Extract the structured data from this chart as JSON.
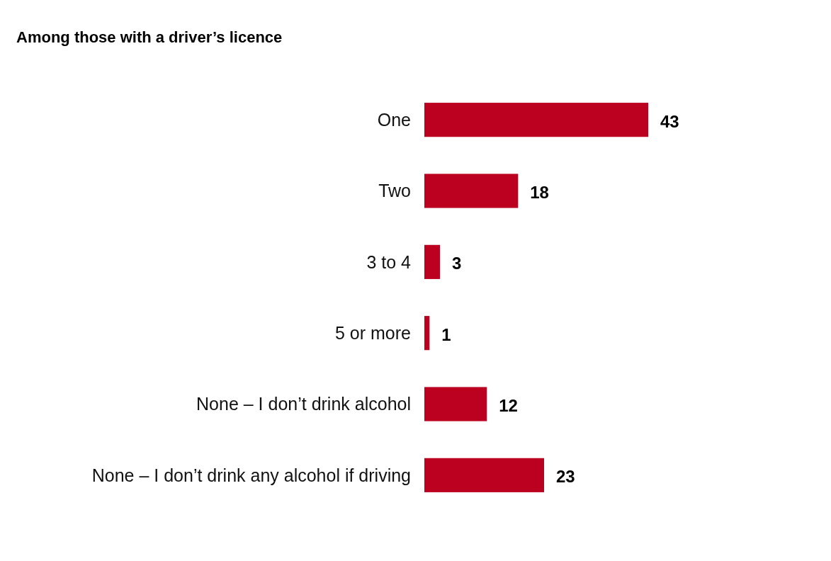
{
  "chart_data": {
    "type": "bar",
    "orientation": "horizontal",
    "title": "Among those with a driver’s licence",
    "categories": [
      "One",
      "Two",
      "3 to 4",
      "5 or more",
      "None – I don’t drink alcohol",
      "None – I don’t drink any alcohol if driving"
    ],
    "values": [
      43,
      18,
      3,
      1,
      12,
      23
    ],
    "color": "#bb0020",
    "data_labels": true
  }
}
